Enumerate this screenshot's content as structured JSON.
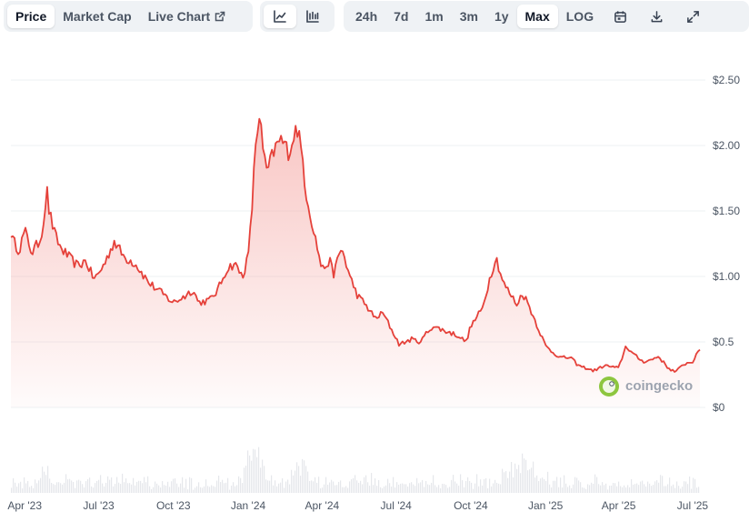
{
  "tabs": {
    "price": "Price",
    "market_cap": "Market Cap",
    "live_chart": "Live Chart"
  },
  "chart_style_icons": [
    "line-chart-icon",
    "candlestick-icon"
  ],
  "ranges": {
    "d24h": "24h",
    "d7d": "7d",
    "m1": "1m",
    "m3": "3m",
    "y1": "1y",
    "max": "Max",
    "log": "LOG"
  },
  "action_icons": [
    "calendar-icon",
    "download-icon",
    "expand-icon"
  ],
  "brand": "coingecko",
  "colors": {
    "line": "#e5413a",
    "area_top": "#f6b3b0",
    "volume": "#e5e7eb",
    "grid": "#eef0f3",
    "brand_green": "#8dc63f"
  },
  "chart_data": {
    "type": "area",
    "series": [
      {
        "x": [
          "2023-03-15",
          "2023-03-25",
          "2023-04-01",
          "2023-04-10",
          "2023-04-20",
          "2023-04-25",
          "2023-04-28",
          "2023-05-01",
          "2023-05-08",
          "2023-05-15",
          "2023-05-25",
          "2023-06-05",
          "2023-06-15",
          "2023-06-25",
          "2023-07-01",
          "2023-07-10",
          "2023-07-20",
          "2023-08-01",
          "2023-08-15",
          "2023-09-01",
          "2023-09-15",
          "2023-10-01",
          "2023-10-15",
          "2023-10-25",
          "2023-11-01",
          "2023-11-15",
          "2023-11-25",
          "2023-12-05",
          "2023-12-15",
          "2023-12-25",
          "2024-01-01",
          "2024-01-05",
          "2024-01-10",
          "2024-01-15",
          "2024-01-20",
          "2024-01-25",
          "2024-02-01",
          "2024-02-10",
          "2024-02-20",
          "2024-03-01",
          "2024-03-08",
          "2024-03-12",
          "2024-03-20",
          "2024-04-01",
          "2024-04-10",
          "2024-04-15",
          "2024-04-25",
          "2024-05-05",
          "2024-05-15",
          "2024-05-25",
          "2024-06-05",
          "2024-06-15",
          "2024-06-25",
          "2024-07-05",
          "2024-07-20",
          "2024-08-01",
          "2024-08-05",
          "2024-08-15",
          "2024-09-01",
          "2024-09-15",
          "2024-09-25",
          "2024-10-01",
          "2024-10-15",
          "2024-10-25",
          "2024-11-01",
          "2024-11-10",
          "2024-11-20",
          "2024-11-28",
          "2024-12-03",
          "2024-12-10",
          "2024-12-20",
          "2025-01-01",
          "2025-01-10",
          "2025-01-20",
          "2025-02-01",
          "2025-02-10",
          "2025-02-20",
          "2025-03-01",
          "2025-03-15",
          "2025-04-01",
          "2025-04-10",
          "2025-04-20",
          "2025-05-01",
          "2025-05-10",
          "2025-05-20",
          "2025-06-01",
          "2025-06-10",
          "2025-06-20",
          "2025-07-01",
          "2025-07-10"
        ],
        "y": [
          1.3,
          1.2,
          1.35,
          1.18,
          1.28,
          1.45,
          1.68,
          1.5,
          1.32,
          1.22,
          1.15,
          1.08,
          1.12,
          0.98,
          1.02,
          1.12,
          1.27,
          1.15,
          1.1,
          0.95,
          0.88,
          0.8,
          0.85,
          0.9,
          0.8,
          0.82,
          0.9,
          1.05,
          1.1,
          1.0,
          1.15,
          1.45,
          2.0,
          2.25,
          1.9,
          1.8,
          1.95,
          2.05,
          1.95,
          2.15,
          1.9,
          1.65,
          1.4,
          1.05,
          1.12,
          1.02,
          1.22,
          1.0,
          0.85,
          0.78,
          0.68,
          0.72,
          0.6,
          0.48,
          0.52,
          0.5,
          0.55,
          0.62,
          0.58,
          0.55,
          0.5,
          0.62,
          0.75,
          1.0,
          1.15,
          0.95,
          0.85,
          0.78,
          0.88,
          0.8,
          0.65,
          0.47,
          0.42,
          0.38,
          0.38,
          0.32,
          0.3,
          0.28,
          0.32,
          0.3,
          0.47,
          0.4,
          0.35,
          0.36,
          0.39,
          0.3,
          0.27,
          0.33,
          0.35,
          0.44
        ]
      }
    ],
    "x_ticks": [
      "Apr '23",
      "Jul '23",
      "Oct '23",
      "Jan '24",
      "Apr '24",
      "Jul '24",
      "Oct '24",
      "Jan '25",
      "Apr '25",
      "Jul '25"
    ],
    "y_ticks": [
      "$2.50",
      "$2.00",
      "$1.50",
      "$1.00",
      "$0.5",
      "$0"
    ],
    "ylim": [
      0,
      2.5
    ],
    "y_scale": "linear",
    "grid": "horizontal",
    "volume_series": true
  }
}
